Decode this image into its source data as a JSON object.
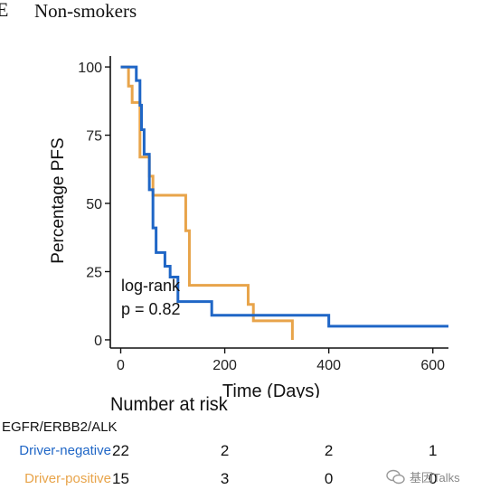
{
  "panel": {
    "letter": "E",
    "title": "Non-smokers"
  },
  "colors": {
    "driver_negative": "#1f66c6",
    "driver_positive": "#e8a44a",
    "axis": "#111111"
  },
  "chart_data": {
    "type": "line",
    "title": "",
    "xlabel": "Time (Days)",
    "ylabel": "Percentage PFS",
    "xlim": [
      -20,
      630
    ],
    "ylim": [
      -3,
      104
    ],
    "xticks": [
      0,
      200,
      400,
      600
    ],
    "yticks": [
      0,
      25,
      50,
      75,
      100
    ],
    "grid": false,
    "step": true,
    "annotation": [
      "log-rank",
      "p = 0.82"
    ],
    "series": [
      {
        "name": "Driver-negative",
        "color": "#1f66c6",
        "x": [
          0,
          22,
          30,
          37,
          40,
          45,
          55,
          62,
          68,
          85,
          95,
          110,
          175,
          400,
          630
        ],
        "y": [
          100,
          100,
          95,
          86,
          77,
          68,
          55,
          41,
          32,
          27,
          23,
          14,
          9,
          5,
          5
        ]
      },
      {
        "name": "Driver-positive",
        "color": "#e8a44a",
        "x": [
          0,
          15,
          22,
          37,
          45,
          55,
          62,
          125,
          132,
          245,
          255,
          330
        ],
        "y": [
          100,
          93,
          87,
          67,
          67,
          60,
          53,
          40,
          20,
          13,
          7,
          0
        ]
      }
    ]
  },
  "risk_table": {
    "title": "Number at risk",
    "group_label": "EGFR/ERBB2/ALK",
    "times": [
      0,
      200,
      400,
      600
    ],
    "rows": [
      {
        "name": "Driver-negative",
        "color": "#1f66c6",
        "counts": [
          "22",
          "2",
          "2",
          "1"
        ]
      },
      {
        "name": "Driver-positive",
        "color": "#e8a44a",
        "counts": [
          "15",
          "3",
          "0",
          "0"
        ]
      }
    ]
  },
  "watermark": {
    "text": "基因Talks"
  }
}
